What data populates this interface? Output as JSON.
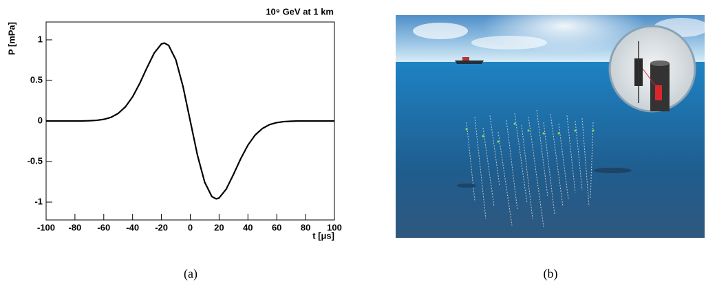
{
  "chart_data": {
    "type": "line",
    "title": "10⁹ GeV at 1 km",
    "xlabel": "t [μs]",
    "ylabel": "P [mPa]",
    "x": [
      -100,
      -95,
      -90,
      -85,
      -80,
      -75,
      -70,
      -65,
      -60,
      -55,
      -50,
      -45,
      -40,
      -35,
      -30,
      -25,
      -20,
      -18,
      -15,
      -10,
      -5,
      0,
      5,
      10,
      15,
      18,
      20,
      25,
      30,
      35,
      40,
      45,
      50,
      55,
      60,
      65,
      70,
      75,
      80,
      85,
      90,
      95,
      100
    ],
    "series": [
      {
        "color": "#000000",
        "values": [
          0,
          0,
          0,
          0,
          0,
          0,
          0.003,
          0.008,
          0.02,
          0.045,
          0.093,
          0.174,
          0.298,
          0.465,
          0.658,
          0.838,
          0.949,
          0.96,
          0.932,
          0.754,
          0.423,
          0,
          -0.423,
          -0.754,
          -0.932,
          -0.96,
          -0.949,
          -0.838,
          -0.658,
          -0.465,
          -0.298,
          -0.174,
          -0.093,
          -0.045,
          -0.02,
          -0.008,
          -0.003,
          0,
          0,
          0,
          0,
          0,
          0
        ]
      }
    ],
    "xlim": [
      -100,
      100
    ],
    "xticks": [
      -100,
      -80,
      -60,
      -40,
      -20,
      0,
      20,
      40,
      60,
      80,
      100
    ],
    "ylim": [
      -1.22,
      1.22
    ],
    "yticks": [
      -1,
      -0.5,
      0,
      0.5,
      1
    ]
  },
  "captions": [
    "(a)",
    "(b)"
  ]
}
